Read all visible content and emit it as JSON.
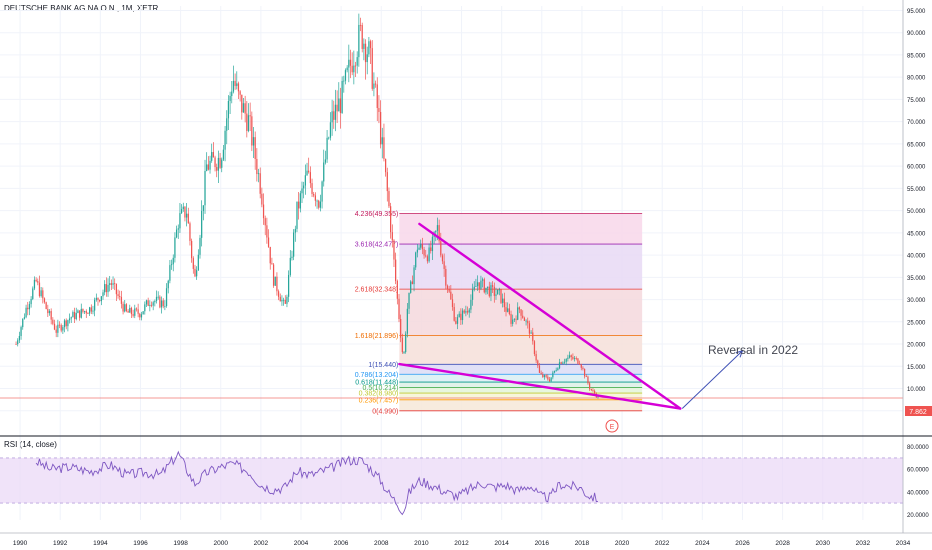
{
  "header": {
    "symbol": "DEUTSCHE BANK AG NA O.N., 1M, XETR"
  },
  "rsi_panel": {
    "label": "RSI (14, close)"
  },
  "annotation": {
    "text": "Reversal in 2022"
  },
  "marker": {
    "label": "E"
  },
  "price_tag": {
    "value": "7.862"
  },
  "colors": {
    "up": "#26a69a",
    "down": "#ef5350",
    "wedge": "#d500d6",
    "rsi_line": "#7e57c2",
    "rsi_band": "#ead7f7",
    "arrow": "#3f51b5"
  },
  "chart_data": {
    "type": "candlestick",
    "xlim": [
      1989,
      2034
    ],
    "ylim": [
      0,
      96
    ],
    "x_ticks": [
      "1990",
      "1992",
      "1994",
      "1996",
      "1998",
      "2000",
      "2002",
      "2004",
      "2006",
      "2008",
      "2010",
      "2012",
      "2014",
      "2016",
      "2018",
      "2020",
      "2022",
      "2024",
      "2026",
      "2028",
      "2030",
      "2032",
      "2034"
    ],
    "y_ticks": [
      "95.000",
      "90.000",
      "85.000",
      "80.000",
      "75.000",
      "70.000",
      "65.000",
      "60.000",
      "55.000",
      "50.000",
      "45.000",
      "40.000",
      "35.000",
      "30.000",
      "25.000",
      "20.000",
      "15.000",
      "10.000",
      "5.000"
    ],
    "price_path": [
      [
        1989.8,
        20
      ],
      [
        1990.3,
        28
      ],
      [
        1990.8,
        34
      ],
      [
        1991.3,
        28
      ],
      [
        1991.8,
        23
      ],
      [
        1992.5,
        26
      ],
      [
        1993.5,
        28
      ],
      [
        1994.5,
        34
      ],
      [
        1995.3,
        27
      ],
      [
        1996.0,
        27
      ],
      [
        1996.5,
        30
      ],
      [
        1997.2,
        29
      ],
      [
        1997.9,
        48
      ],
      [
        1998.3,
        50
      ],
      [
        1998.7,
        34
      ],
      [
        1999.3,
        60
      ],
      [
        2000.0,
        62
      ],
      [
        2000.6,
        80
      ],
      [
        2000.9,
        75
      ],
      [
        2001.4,
        70
      ],
      [
        2002.0,
        55
      ],
      [
        2002.6,
        35
      ],
      [
        2003.2,
        28
      ],
      [
        2003.8,
        50
      ],
      [
        2004.3,
        58
      ],
      [
        2004.9,
        52
      ],
      [
        2005.5,
        70
      ],
      [
        2006.0,
        75
      ],
      [
        2006.6,
        85
      ],
      [
        2007.0,
        90
      ],
      [
        2007.4,
        85
      ],
      [
        2007.9,
        70
      ],
      [
        2008.4,
        50
      ],
      [
        2008.8,
        30
      ],
      [
        2009.1,
        16
      ],
      [
        2009.3,
        28
      ],
      [
        2009.8,
        42
      ],
      [
        2010.4,
        40
      ],
      [
        2010.8,
        46
      ],
      [
        2011.2,
        35
      ],
      [
        2011.7,
        25
      ],
      [
        2012.3,
        28
      ],
      [
        2012.8,
        34
      ],
      [
        2013.4,
        32
      ],
      [
        2013.9,
        31
      ],
      [
        2014.5,
        25
      ],
      [
        2014.9,
        28
      ],
      [
        2015.4,
        23
      ],
      [
        2015.9,
        13
      ],
      [
        2016.4,
        12
      ],
      [
        2016.9,
        16
      ],
      [
        2017.4,
        17
      ],
      [
        2017.9,
        16
      ],
      [
        2018.4,
        10
      ],
      [
        2018.8,
        8
      ]
    ],
    "fibonacci": [
      {
        "label": "4.236(49.355)",
        "value": 49.355
      },
      {
        "label": "3.618(42.477)",
        "value": 42.477
      },
      {
        "label": "2.618(32.348)",
        "value": 32.348
      },
      {
        "label": "1.618(21.896)",
        "value": 21.896
      },
      {
        "label": "1(15.440)",
        "value": 15.44
      },
      {
        "label": "0.786(13.204)",
        "value": 13.204
      },
      {
        "label": "0.618(11.448)",
        "value": 11.448
      },
      {
        "label": "0.5(10.214)",
        "value": 10.214
      },
      {
        "label": "0.382(8.980)",
        "value": 8.98
      },
      {
        "label": "0.236(7.457)",
        "value": 7.457
      },
      {
        "label": "0(4.990)",
        "value": 4.99
      }
    ],
    "fib_x_range": [
      2008.9,
      2021.0
    ],
    "wedge_upper": [
      [
        2009.9,
        47
      ],
      [
        2022.9,
        5.5
      ]
    ],
    "wedge_lower": [
      [
        2008.9,
        15.5
      ],
      [
        2022.9,
        5.5
      ]
    ],
    "arrow": [
      [
        2023.0,
        5.5
      ],
      [
        2026.0,
        18.5
      ]
    ],
    "last_price": 7.862,
    "rsi": {
      "ylim": [
        15,
        85
      ],
      "y_ticks": [
        "80.0000",
        "60.0000",
        "40.0000",
        "20.0000"
      ],
      "bands": [
        30,
        70
      ],
      "path": [
        [
          1990.8,
          67
        ],
        [
          1991.5,
          60
        ],
        [
          1992.5,
          62
        ],
        [
          1993.5,
          58
        ],
        [
          1994.5,
          64
        ],
        [
          1995.3,
          55
        ],
        [
          1996.2,
          57
        ],
        [
          1997.0,
          55
        ],
        [
          1997.9,
          74
        ],
        [
          1998.3,
          60
        ],
        [
          1998.7,
          47
        ],
        [
          1999.3,
          57
        ],
        [
          2000.0,
          62
        ],
        [
          2000.6,
          65
        ],
        [
          2001.4,
          58
        ],
        [
          2002.0,
          46
        ],
        [
          2002.6,
          42
        ],
        [
          2003.2,
          44
        ],
        [
          2003.8,
          58
        ],
        [
          2004.5,
          55
        ],
        [
          2005.5,
          61
        ],
        [
          2006.3,
          68
        ],
        [
          2007.0,
          68
        ],
        [
          2007.5,
          60
        ],
        [
          2007.9,
          52
        ],
        [
          2008.4,
          38
        ],
        [
          2008.8,
          30
        ],
        [
          2009.1,
          22
        ],
        [
          2009.4,
          40
        ],
        [
          2009.9,
          50
        ],
        [
          2010.5,
          46
        ],
        [
          2011.2,
          40
        ],
        [
          2011.8,
          36
        ],
        [
          2012.4,
          42
        ],
        [
          2013.0,
          48
        ],
        [
          2013.6,
          44
        ],
        [
          2014.2,
          46
        ],
        [
          2014.8,
          41
        ],
        [
          2015.4,
          46
        ],
        [
          2015.9,
          36
        ],
        [
          2016.4,
          35
        ],
        [
          2016.9,
          47
        ],
        [
          2017.4,
          45
        ],
        [
          2017.9,
          44
        ],
        [
          2018.3,
          37
        ],
        [
          2018.8,
          34
        ]
      ]
    }
  }
}
